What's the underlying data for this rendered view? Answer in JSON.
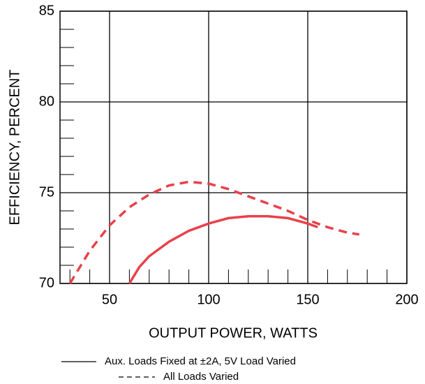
{
  "chart_data": {
    "type": "line",
    "xlabel": "OUTPUT POWER, WATTS",
    "ylabel": "EFFICIENCY, PERCENT",
    "xlim": [
      25,
      200
    ],
    "ylim": [
      70,
      85
    ],
    "xticks": [
      50,
      100,
      150,
      200
    ],
    "yticks": [
      70,
      75,
      80,
      85
    ],
    "x_minor_ticks": [
      30,
      40,
      60,
      70,
      80,
      90,
      110,
      120,
      130,
      140,
      160,
      170,
      180,
      190
    ],
    "y_minor_ticks": [
      71,
      72,
      73,
      74,
      76,
      77,
      78,
      79,
      81,
      82,
      83,
      84
    ],
    "grid": true,
    "series": [
      {
        "name": "Aux. Loads Fixed at ±2A, 5V Load Varied",
        "color": "#e8414b",
        "style": "solid",
        "x": [
          60,
          65,
          70,
          80,
          90,
          100,
          110,
          120,
          130,
          140,
          150,
          155
        ],
        "values": [
          70,
          70.9,
          71.5,
          72.3,
          72.9,
          73.3,
          73.6,
          73.7,
          73.7,
          73.6,
          73.3,
          73.1
        ]
      },
      {
        "name": "All Loads Varied",
        "color": "#e8414b",
        "style": "dashed",
        "x": [
          30,
          40,
          50,
          60,
          70,
          80,
          90,
          100,
          110,
          120,
          130,
          140,
          150,
          160,
          170,
          176
        ],
        "values": [
          70,
          71.8,
          73.2,
          74.2,
          74.9,
          75.4,
          75.6,
          75.5,
          75.2,
          74.8,
          74.4,
          74,
          73.5,
          73.1,
          72.8,
          72.7
        ]
      }
    ]
  }
}
